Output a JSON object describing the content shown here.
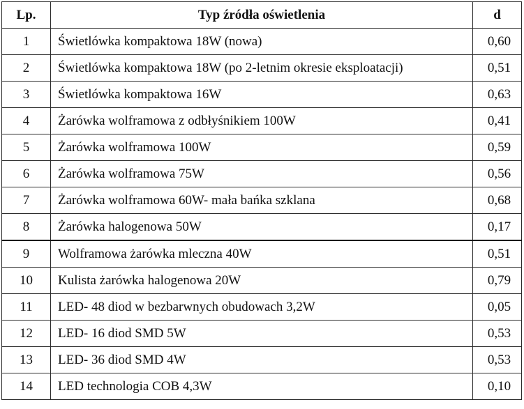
{
  "table": {
    "headers": {
      "lp": "Lp.",
      "name": "Typ źródła oświetlenia",
      "d": "d"
    },
    "rows": [
      {
        "lp": "1",
        "name": "Świetlówka kompaktowa 18W (nowa)",
        "d": "0,60"
      },
      {
        "lp": "2",
        "name": "Świetlówka kompaktowa 18W (po 2-letnim okresie eksploatacji)",
        "d": "0,51"
      },
      {
        "lp": "3",
        "name": "Świetlówka kompaktowa 16W",
        "d": "0,63"
      },
      {
        "lp": "4",
        "name": "Żarówka wolframowa z odbłyśnikiem 100W",
        "d": "0,41"
      },
      {
        "lp": "5",
        "name": "Żarówka wolframowa 100W",
        "d": "0,59"
      },
      {
        "lp": "6",
        "name": "Żarówka wolframowa 75W",
        "d": "0,56"
      },
      {
        "lp": "7",
        "name": "Żarówka wolframowa 60W- mała bańka szklana",
        "d": "0,68"
      },
      {
        "lp": "8",
        "name": "Żarówka halogenowa 50W",
        "d": "0,17"
      },
      {
        "lp": "9",
        "name": "Wolframowa żarówka mleczna 40W",
        "d": "0,51"
      },
      {
        "lp": "10",
        "name": "Kulista żarówka halogenowa 20W",
        "d": "0,79"
      },
      {
        "lp": "11",
        "name": "LED- 48 diod w bezbarwnych obudowach 3,2W",
        "d": "0,05"
      },
      {
        "lp": "12",
        "name": "LED- 16 diod SMD 5W",
        "d": "0,53"
      },
      {
        "lp": "13",
        "name": "LED- 36 diod SMD 4W",
        "d": "0,53"
      },
      {
        "lp": "14",
        "name": "LED technologia COB 4,3W",
        "d": "0,10"
      }
    ]
  }
}
